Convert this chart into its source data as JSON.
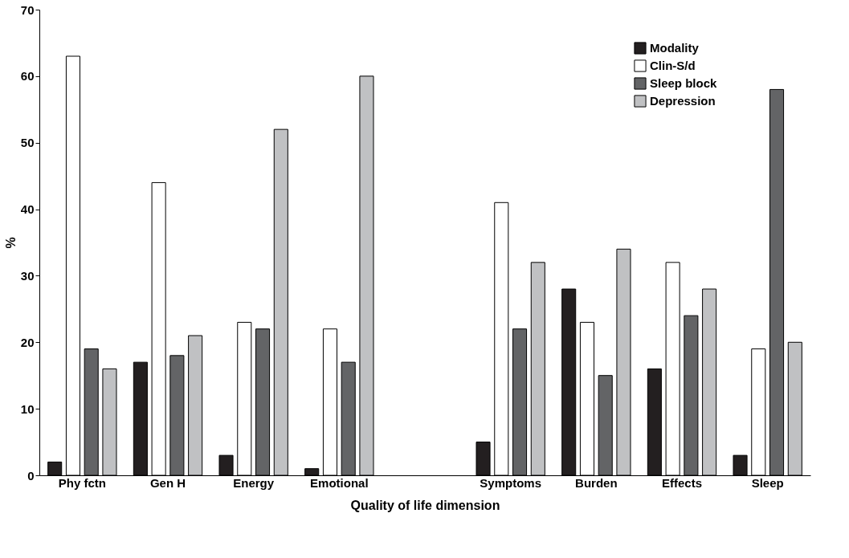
{
  "chart_data": {
    "type": "bar",
    "xlabel": "Quality of life dimension",
    "ylabel": "%",
    "categories": [
      "Phy fctn",
      "Gen H",
      "Energy",
      "Emotional",
      null,
      "Symptoms",
      "Burden",
      "Effects",
      "Sleep"
    ],
    "series": [
      {
        "name": "Modality",
        "color": "#231f20",
        "values": [
          2,
          17,
          3,
          1,
          null,
          5,
          28,
          16,
          3
        ]
      },
      {
        "name": "Clin-S/d",
        "color": "#ffffff",
        "values": [
          63,
          44,
          23,
          22,
          null,
          41,
          23,
          32,
          19
        ]
      },
      {
        "name": "Sleep block",
        "color": "#636466",
        "values": [
          19,
          18,
          22,
          17,
          null,
          22,
          15,
          24,
          58
        ]
      },
      {
        "name": "Depression",
        "color": "#c0c1c3",
        "values": [
          16,
          21,
          52,
          60,
          null,
          32,
          34,
          28,
          20
        ]
      }
    ],
    "ylim": [
      0,
      70
    ],
    "yticks": [
      0,
      10,
      20,
      30,
      40,
      50,
      60,
      70
    ],
    "grid": false,
    "legend": "top right"
  }
}
